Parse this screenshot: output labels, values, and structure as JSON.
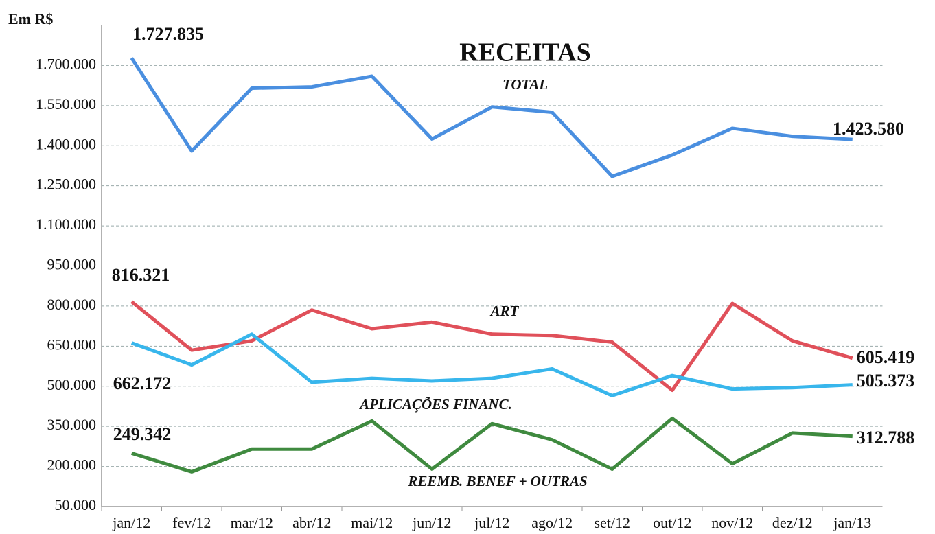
{
  "chart_data": {
    "type": "line",
    "title": "RECEITAS",
    "y_label": "Em R$",
    "categories": [
      "jan/12",
      "fev/12",
      "mar/12",
      "abr/12",
      "mai/12",
      "jun/12",
      "jul/12",
      "ago/12",
      "set/12",
      "out/12",
      "nov/12",
      "dez/12",
      "jan/13"
    ],
    "ylim": [
      50000,
      1850000
    ],
    "yticks": [
      {
        "value": 50000,
        "label": "50.000"
      },
      {
        "value": 200000,
        "label": "200.000"
      },
      {
        "value": 350000,
        "label": "350.000"
      },
      {
        "value": 500000,
        "label": "500.000"
      },
      {
        "value": 650000,
        "label": "650.000"
      },
      {
        "value": 800000,
        "label": "800.000"
      },
      {
        "value": 950000,
        "label": "950.000"
      },
      {
        "value": 1100000,
        "label": "1.100.000"
      },
      {
        "value": 1250000,
        "label": "1.250.000"
      },
      {
        "value": 1400000,
        "label": "1.400.000"
      },
      {
        "value": 1550000,
        "label": "1.550.000"
      },
      {
        "value": 1700000,
        "label": "1.700.000"
      }
    ],
    "grid": true,
    "series": [
      {
        "name": "TOTAL",
        "color": "#4a8fe0",
        "values": [
          1727835,
          1380000,
          1615000,
          1620000,
          1660000,
          1425000,
          1545000,
          1525000,
          1285000,
          1365000,
          1465000,
          1435000,
          1423580
        ],
        "value_labels": [
          "1.727.835",
          null,
          null,
          null,
          null,
          null,
          null,
          null,
          null,
          null,
          null,
          null,
          "1.423.580"
        ]
      },
      {
        "name": "ART",
        "color": "#e0505a",
        "values": [
          816321,
          635000,
          670000,
          785000,
          715000,
          740000,
          695000,
          690000,
          665000,
          485000,
          810000,
          670000,
          605419
        ],
        "value_labels": [
          "816.321",
          null,
          null,
          null,
          null,
          null,
          null,
          null,
          null,
          null,
          null,
          null,
          "605.419"
        ]
      },
      {
        "name": "APLICAÇÕES FINANC.",
        "color": "#38b6ec",
        "values": [
          662172,
          580000,
          695000,
          515000,
          530000,
          520000,
          530000,
          565000,
          465000,
          540000,
          490000,
          495000,
          505373
        ],
        "value_labels": [
          "662.172",
          null,
          null,
          null,
          null,
          null,
          null,
          null,
          null,
          null,
          null,
          null,
          "505.373"
        ]
      },
      {
        "name": "REEMB. BENEF + OUTRAS",
        "color": "#3f8a3f",
        "values": [
          249342,
          180000,
          265000,
          265000,
          370000,
          190000,
          360000,
          300000,
          190000,
          380000,
          210000,
          325000,
          312788
        ],
        "value_labels": [
          "249.342",
          null,
          null,
          null,
          null,
          null,
          null,
          null,
          null,
          null,
          null,
          null,
          "312.788"
        ]
      }
    ]
  }
}
